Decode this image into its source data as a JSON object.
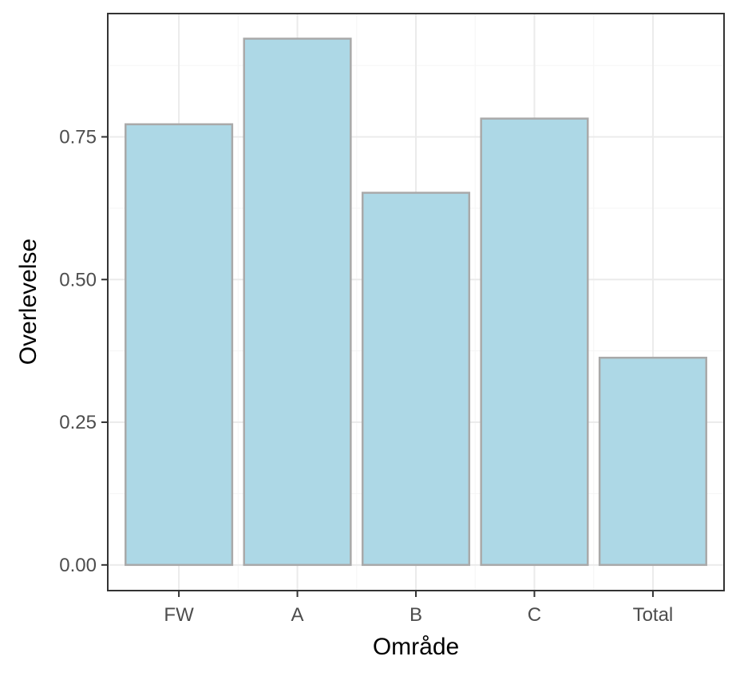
{
  "chart_data": {
    "type": "bar",
    "title": "",
    "xlabel": "Område",
    "ylabel": "Overlevelse",
    "categories": [
      "FW",
      "A",
      "B",
      "C",
      "Total"
    ],
    "values": [
      0.772,
      0.922,
      0.652,
      0.782,
      0.363
    ],
    "ylim": [
      -0.045,
      0.966
    ],
    "yticks": [
      0.0,
      0.25,
      0.5,
      0.75
    ],
    "ytick_labels": [
      "0.00",
      "0.25",
      "0.50",
      "0.75"
    ],
    "grid": true,
    "legend": "none",
    "colors": {
      "bar_fill": "#add8e6",
      "bar_stroke": "#a9a9a9",
      "grid_major": "#ebebeb",
      "grid_minor": "#f5f5f5",
      "panel_border": "#333333",
      "tick_text": "#4d4d4d",
      "axis_title": "#000000"
    }
  }
}
